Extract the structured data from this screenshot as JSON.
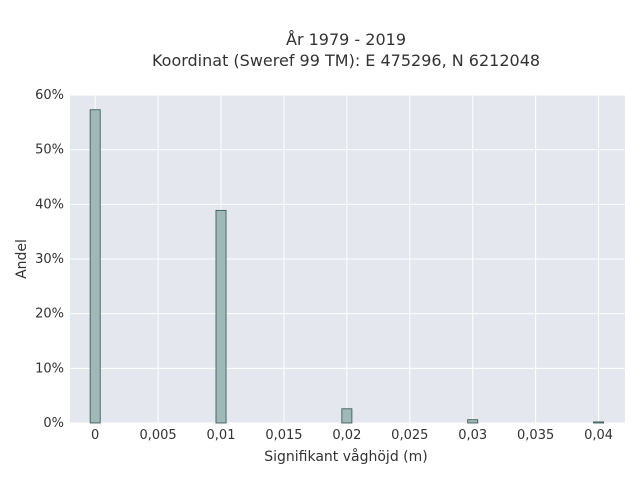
{
  "chart_data": {
    "type": "bar",
    "title_line1": "År 1979 - 2019",
    "title_line2": "Koordinat (Sweref 99 TM): E 475296, N 6212048",
    "xlabel": "Signifikant våghöjd (m)",
    "ylabel": "Andel",
    "x_ticks": [
      "0",
      "0,005",
      "0,01",
      "0,015",
      "0,02",
      "0,025",
      "0,03",
      "0,035",
      "0,04"
    ],
    "y_ticks": [
      "0%",
      "10%",
      "20%",
      "30%",
      "40%",
      "50%",
      "60%"
    ],
    "xlim": [
      -0.002,
      0.0421
    ],
    "ylim": [
      0,
      60
    ],
    "bar_width": 0.0008,
    "x": [
      0,
      0.01,
      0.02,
      0.03,
      0.04
    ],
    "values": [
      57.3,
      38.9,
      2.6,
      0.6,
      0.2
    ],
    "grid": true,
    "bar_color": "#9fb8b8",
    "bar_edge_color": "#2f4f4f",
    "plot_bg": "#e5e7ef",
    "grid_color": "#ffffff"
  }
}
